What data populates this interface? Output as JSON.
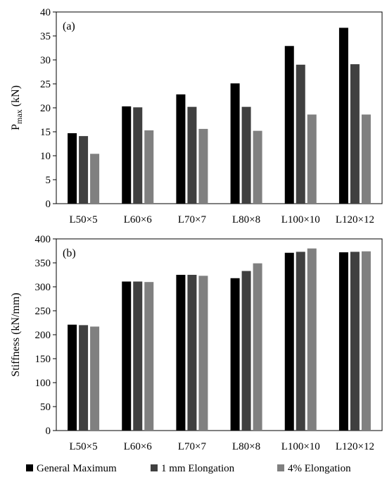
{
  "chart_data": [
    {
      "type": "bar",
      "panel_label": "(a)",
      "ylabel": "P",
      "ylabel_sub": "max",
      "ylabel_unit": " (kN)",
      "ylim": [
        0,
        40
      ],
      "yticks": [
        0,
        5,
        10,
        15,
        20,
        25,
        30,
        35,
        40
      ],
      "grid": false,
      "categories": [
        "L50×5",
        "L60×6",
        "L70×7",
        "L80×8",
        "L100×10",
        "L120×12"
      ],
      "series": [
        {
          "name": "General Maximum",
          "color": "#000000",
          "values": [
            14.7,
            20.3,
            22.8,
            25.1,
            32.9,
            36.7
          ]
        },
        {
          "name": "1 mm Elongation",
          "color": "#404040",
          "values": [
            14.1,
            20.1,
            20.2,
            20.2,
            29.0,
            29.1
          ]
        },
        {
          "name": "4% Elongation",
          "color": "#808080",
          "values": [
            10.4,
            15.3,
            15.6,
            15.2,
            18.6,
            18.6
          ]
        }
      ]
    },
    {
      "type": "bar",
      "panel_label": "(b)",
      "ylabel": "Stiffness (kN/mm)",
      "ylim": [
        0,
        400
      ],
      "yticks": [
        0,
        50,
        100,
        150,
        200,
        250,
        300,
        350,
        400
      ],
      "grid": false,
      "categories": [
        "L50×5",
        "L60×6",
        "L70×7",
        "L80×8",
        "L100×10",
        "L120×12"
      ],
      "series": [
        {
          "name": "General Maximum",
          "color": "#000000",
          "values": [
            221,
            311,
            325,
            318,
            371,
            372
          ]
        },
        {
          "name": "1 mm Elongation",
          "color": "#404040",
          "values": [
            220,
            311,
            325,
            333,
            373,
            373
          ]
        },
        {
          "name": "4% Elongation",
          "color": "#808080",
          "values": [
            217,
            310,
            323,
            349,
            380,
            374
          ]
        }
      ]
    }
  ],
  "legend": {
    "position": "bottom",
    "items": [
      {
        "label": "General Maximum",
        "color": "#000000"
      },
      {
        "label": "1 mm Elongation",
        "color": "#404040"
      },
      {
        "label": "4% Elongation",
        "color": "#808080"
      }
    ]
  }
}
